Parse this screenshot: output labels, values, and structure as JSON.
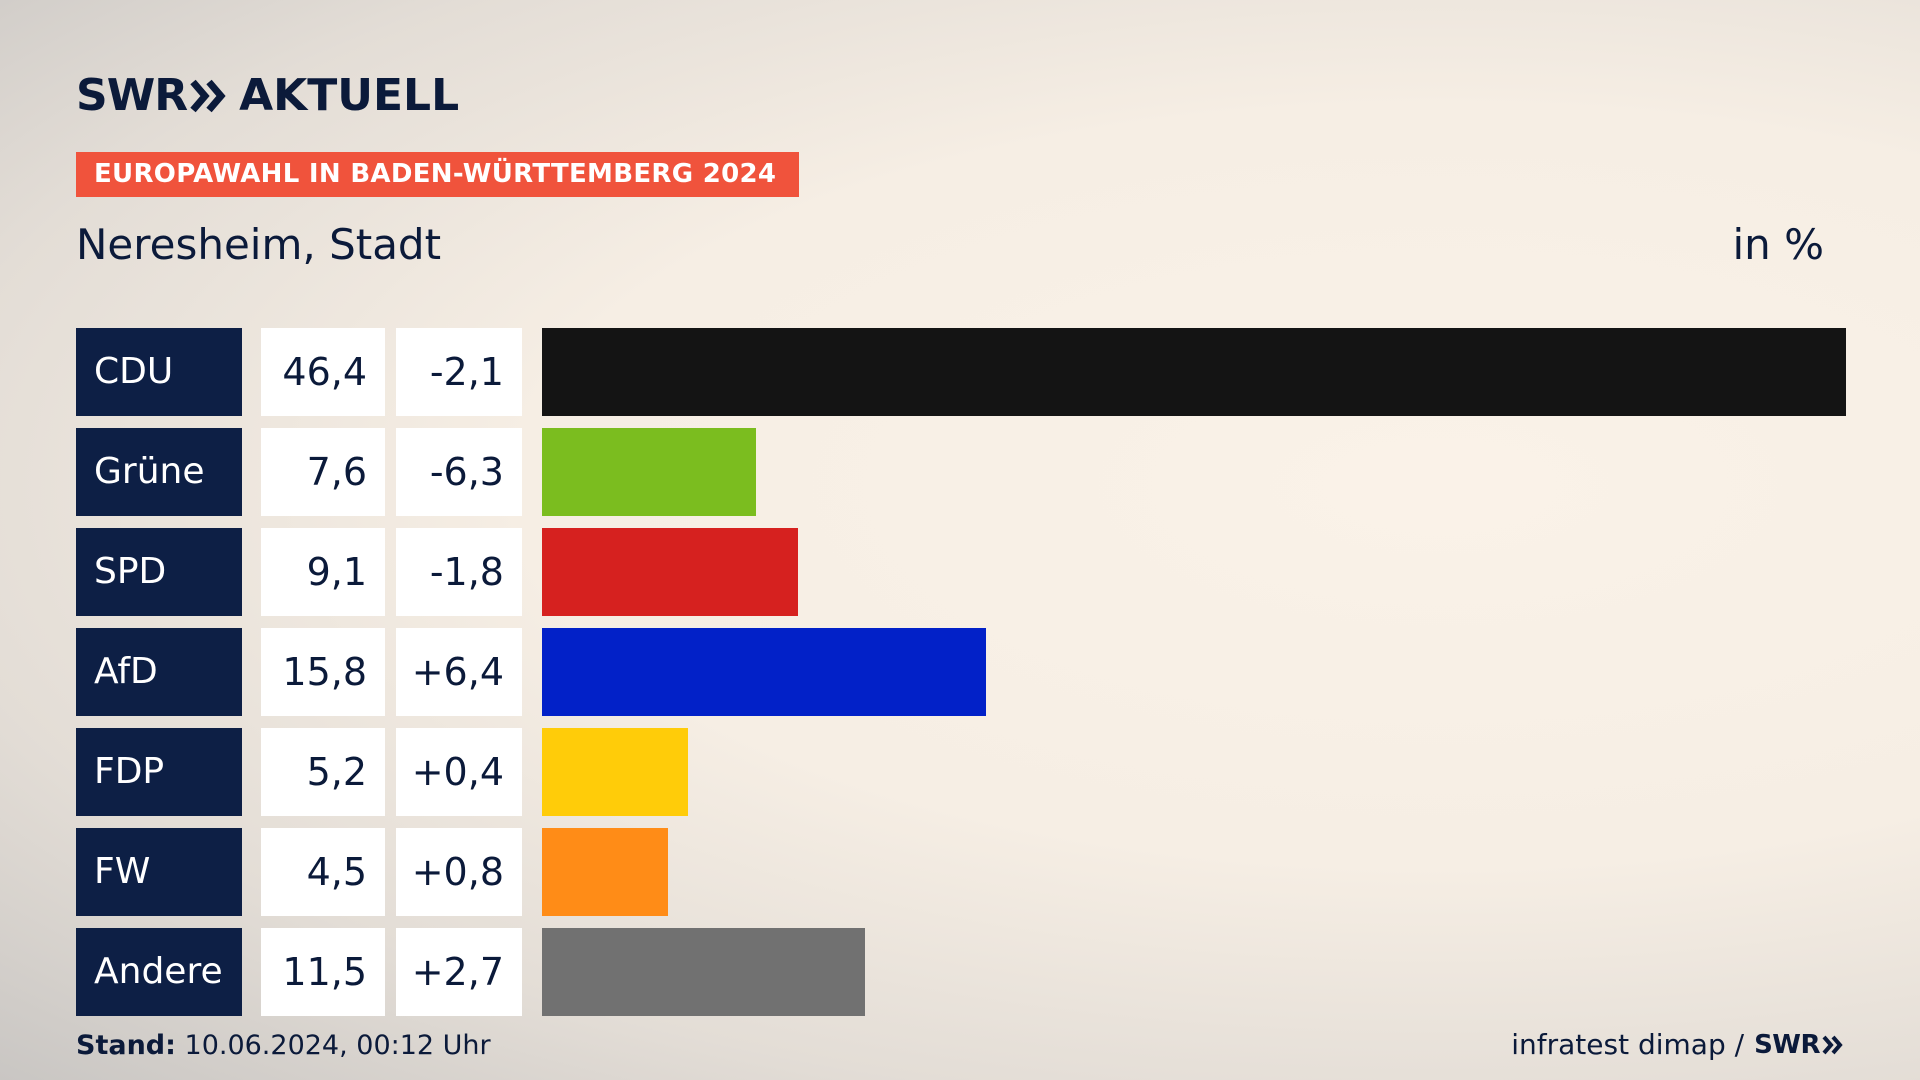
{
  "header": {
    "logo_swr": "SWR",
    "logo_aktuell": "AKTUELL",
    "tag": "EUROPAWAHL IN BADEN-WÜRTTEMBERG 2024",
    "subtitle": "Neresheim, Stadt",
    "unit": "in %"
  },
  "chart_data": {
    "type": "bar",
    "title": "Neresheim, Stadt",
    "ylabel": "in %",
    "xlim": [
      0,
      46.4
    ],
    "categories": [
      "CDU",
      "Grüne",
      "SPD",
      "AfD",
      "FDP",
      "FW",
      "Andere"
    ],
    "values": [
      46.4,
      7.6,
      9.1,
      15.8,
      5.2,
      4.5,
      11.5
    ],
    "rows": [
      {
        "party": "CDU",
        "value": 46.4,
        "value_label": "46,4",
        "diff_label": "-2,1",
        "color": "#141414"
      },
      {
        "party": "Grüne",
        "value": 7.6,
        "value_label": "7,6",
        "diff_label": "-6,3",
        "color": "#7bbd1f"
      },
      {
        "party": "SPD",
        "value": 9.1,
        "value_label": "9,1",
        "diff_label": "-1,8",
        "color": "#d6211f"
      },
      {
        "party": "AfD",
        "value": 15.8,
        "value_label": "15,8",
        "diff_label": "+6,4",
        "color": "#0221c8"
      },
      {
        "party": "FDP",
        "value": 5.2,
        "value_label": "5,2",
        "diff_label": "+0,4",
        "color": "#ffcc09"
      },
      {
        "party": "FW",
        "value": 4.5,
        "value_label": "4,5",
        "diff_label": "+0,8",
        "color": "#ff8c17"
      },
      {
        "party": "Andere",
        "value": 11.5,
        "value_label": "11,5",
        "diff_label": "+2,7",
        "color": "#717171"
      }
    ]
  },
  "footer": {
    "stand_label": "Stand:",
    "stand_value": "10.06.2024, 00:12 Uhr",
    "source": "infratest dimap /",
    "source_logo": "SWR"
  }
}
